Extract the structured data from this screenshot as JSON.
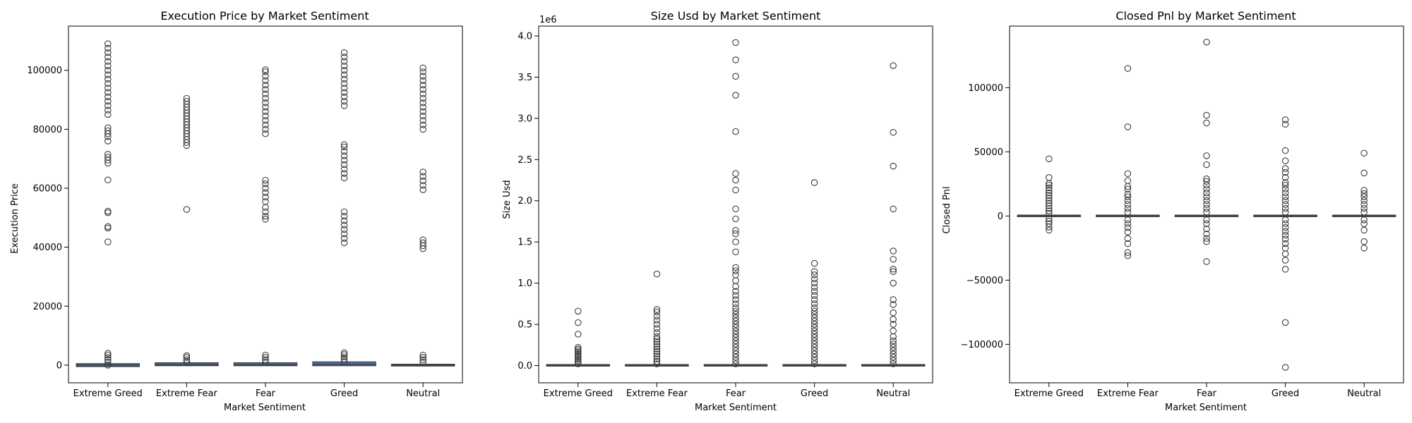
{
  "chart_data": [
    {
      "type": "box",
      "title": "Execution Price by Market Sentiment",
      "xlabel": "Market Sentiment",
      "ylabel": "Execution Price",
      "ylim": [
        -6000,
        115000
      ],
      "yticks": [
        0,
        20000,
        40000,
        60000,
        80000,
        100000
      ],
      "ytick_labels": [
        "0",
        "20000",
        "40000",
        "60000",
        "80000",
        "100000"
      ],
      "offset_label": "",
      "categories": [
        "Extreme Greed",
        "Extreme Fear",
        "Fear",
        "Greed",
        "Neutral"
      ],
      "boxes": [
        {
          "low": -500,
          "high": 500,
          "median": 0
        },
        {
          "low": -200,
          "high": 800,
          "median": 200
        },
        {
          "low": -200,
          "high": 800,
          "median": 150
        },
        {
          "low": -200,
          "high": 1100,
          "median": 300
        },
        {
          "low": -300,
          "high": 300,
          "median": 0
        }
      ],
      "outliers": [
        [
          0,
          1000,
          1800,
          2600,
          3400,
          4000,
          41800,
          46500,
          47000,
          51700,
          52200,
          62800,
          68500,
          69500,
          70500,
          71500,
          76000,
          77500,
          78500,
          79500,
          80500,
          85000,
          86500,
          88000,
          89500,
          91000,
          92500,
          94000,
          95500,
          97000,
          98500,
          100000,
          101500,
          103000,
          104500,
          106000,
          107500,
          109000
        ],
        [
          1000,
          1800,
          2600,
          3200,
          52800,
          74500,
          75500,
          76500,
          77500,
          78500,
          79500,
          80500,
          81500,
          82500,
          83500,
          84500,
          85500,
          86500,
          87500,
          88500,
          89500,
          90500
        ],
        [
          1000,
          1800,
          2600,
          3400,
          49500,
          50500,
          52000,
          53500,
          55500,
          57000,
          58500,
          60000,
          61500,
          62700,
          78500,
          80000,
          81500,
          83000,
          84500,
          86000,
          87500,
          89000,
          90500,
          92000,
          93500,
          95000,
          96500,
          98000,
          99500,
          100200
        ],
        [
          1200,
          2000,
          2800,
          3600,
          4200,
          41500,
          43000,
          44500,
          46000,
          47500,
          49000,
          50500,
          52000,
          63500,
          65000,
          66500,
          68000,
          69500,
          71000,
          72500,
          74000,
          74800,
          88000,
          89500,
          91000,
          92500,
          94000,
          95500,
          97000,
          98500,
          100000,
          101500,
          103000,
          104500,
          106000
        ],
        [
          1000,
          1800,
          2600,
          3400,
          39500,
          40500,
          41500,
          42500,
          59500,
          61000,
          62500,
          64000,
          65500,
          80000,
          81500,
          83000,
          84500,
          86000,
          87500,
          89000,
          90500,
          92000,
          93500,
          95000,
          96500,
          98000,
          99500,
          100800
        ]
      ]
    },
    {
      "type": "box",
      "title": "Size Usd by Market Sentiment",
      "xlabel": "Market Sentiment",
      "ylabel": "Size Usd",
      "ylim": [
        -210000,
        4120000
      ],
      "yticks": [
        0,
        500000,
        1000000,
        1500000,
        2000000,
        2500000,
        3000000,
        3500000,
        4000000
      ],
      "ytick_labels": [
        "0.0",
        "0.5",
        "1.0",
        "1.5",
        "2.0",
        "2.5",
        "3.0",
        "3.5",
        "4.0"
      ],
      "offset_label": "1e6",
      "categories": [
        "Extreme Greed",
        "Extreme Fear",
        "Fear",
        "Greed",
        "Neutral"
      ],
      "boxes": [
        {
          "low": 0,
          "high": 5000,
          "median": 1000
        },
        {
          "low": 0,
          "high": 5000,
          "median": 1000
        },
        {
          "low": 0,
          "high": 5000,
          "median": 1000
        },
        {
          "low": 0,
          "high": 5000,
          "median": 1000
        },
        {
          "low": 0,
          "high": 5000,
          "median": 1000
        }
      ],
      "outliers": [
        [
          20000,
          40000,
          60000,
          80000,
          100000,
          120000,
          140000,
          160000,
          180000,
          200000,
          220000,
          380000,
          520000,
          660000
        ],
        [
          20000,
          50000,
          80000,
          110000,
          140000,
          170000,
          200000,
          230000,
          260000,
          290000,
          320000,
          350000,
          400000,
          450000,
          500000,
          550000,
          600000,
          650000,
          680000,
          1110000
        ],
        [
          20000,
          60000,
          100000,
          140000,
          180000,
          220000,
          260000,
          300000,
          340000,
          380000,
          420000,
          460000,
          500000,
          540000,
          580000,
          620000,
          660000,
          700000,
          750000,
          800000,
          850000,
          900000,
          960000,
          1030000,
          1100000,
          1150000,
          1190000,
          1380000,
          1500000,
          1600000,
          1640000,
          1780000,
          1900000,
          2130000,
          2250000,
          2330000,
          2840000,
          3280000,
          3510000,
          3710000,
          3920000
        ],
        [
          20000,
          60000,
          100000,
          140000,
          180000,
          220000,
          260000,
          300000,
          340000,
          380000,
          420000,
          460000,
          500000,
          540000,
          580000,
          620000,
          660000,
          700000,
          750000,
          800000,
          850000,
          900000,
          950000,
          1000000,
          1050000,
          1100000,
          1140000,
          1240000,
          2220000
        ],
        [
          20000,
          60000,
          100000,
          140000,
          180000,
          220000,
          260000,
          300000,
          350000,
          420000,
          500000,
          560000,
          640000,
          740000,
          800000,
          1000000,
          1140000,
          1170000,
          1290000,
          1390000,
          1900000,
          2420000,
          2830000,
          3640000
        ]
      ]
    },
    {
      "type": "box",
      "title": "Closed Pnl by Market Sentiment",
      "xlabel": "Market Sentiment",
      "ylabel": "Closed Pnl",
      "ylim": [
        -130000,
        148000
      ],
      "yticks": [
        -100000,
        -50000,
        0,
        50000,
        100000
      ],
      "ytick_labels": [
        "−100000",
        "−50000",
        "0",
        "50000",
        "100000"
      ],
      "offset_label": "",
      "categories": [
        "Extreme Greed",
        "Extreme Fear",
        "Fear",
        "Greed",
        "Neutral"
      ],
      "boxes": [
        {
          "low": -100,
          "high": 300,
          "median": 0
        },
        {
          "low": -100,
          "high": 300,
          "median": 0
        },
        {
          "low": -100,
          "high": 300,
          "median": 0
        },
        {
          "low": -100,
          "high": 300,
          "median": 0
        },
        {
          "low": -100,
          "high": 300,
          "median": 0
        }
      ],
      "outliers": [
        [
          -11000,
          -8500,
          -6000,
          -4000,
          -2000,
          2000,
          4000,
          6000,
          8000,
          10000,
          12000,
          14000,
          16000,
          18000,
          20000,
          22000,
          24000,
          25500,
          30000,
          44500
        ],
        [
          -31000,
          -28500,
          -21500,
          -17500,
          -12500,
          -9000,
          -6000,
          -3000,
          3000,
          6000,
          9000,
          12000,
          15000,
          17000,
          21000,
          23000,
          27500,
          33000,
          69500,
          115000
        ],
        [
          -35500,
          -20000,
          -17500,
          -14000,
          -10000,
          -6000,
          -3000,
          3000,
          6000,
          9000,
          12000,
          15000,
          18000,
          21000,
          24000,
          27000,
          29000,
          40000,
          47000,
          72500,
          78500,
          135500
        ],
        [
          -118000,
          -83000,
          -41500,
          -34500,
          -29500,
          -25000,
          -21500,
          -18000,
          -15000,
          -12000,
          -9000,
          -6000,
          -3000,
          3000,
          6000,
          9000,
          12000,
          15000,
          18000,
          21000,
          24000,
          26000,
          30000,
          34000,
          37000,
          43000,
          51000,
          71500,
          75000
        ],
        [
          -25000,
          -20000,
          -11000,
          -6000,
          -3000,
          3000,
          6000,
          9000,
          12000,
          15000,
          17500,
          20000,
          33500,
          49000
        ]
      ]
    }
  ]
}
